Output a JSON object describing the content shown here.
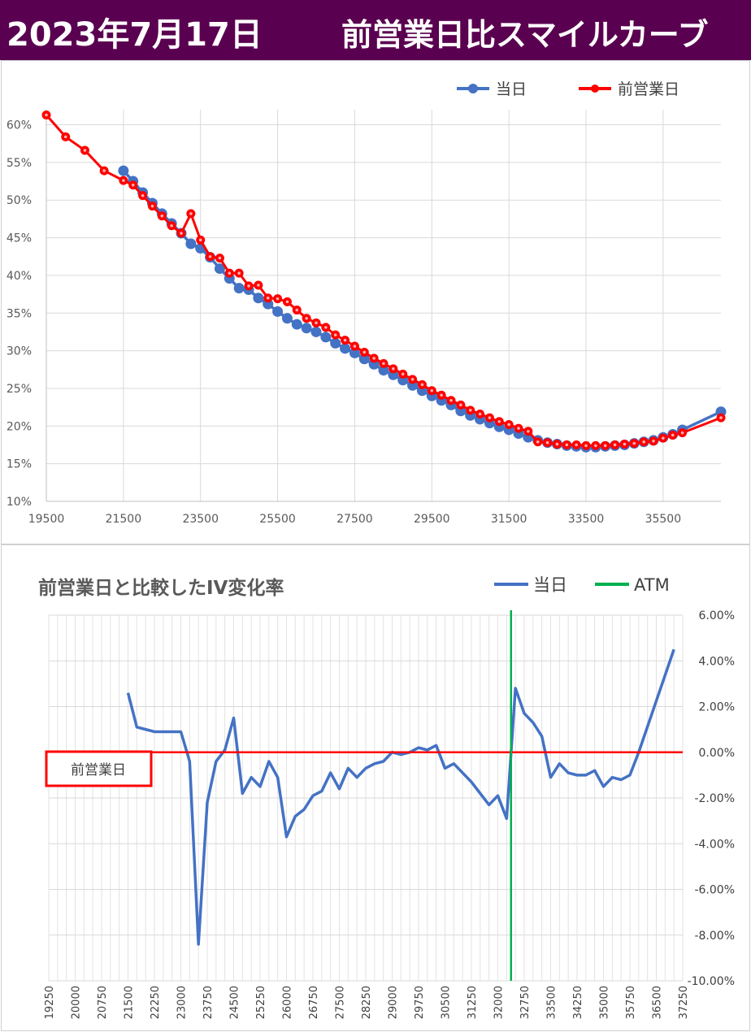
{
  "header": {
    "date": "2023年7月17日",
    "title": "前営業日比スマイルカーブ"
  },
  "colors": {
    "header_bg": "#5a0050",
    "today": "#4472c4",
    "previous": "#ff0000",
    "atm": "#00b050",
    "grid": "#d9d9d9"
  },
  "chart_data": [
    {
      "type": "line",
      "title": "",
      "legend": [
        "当日",
        "前営業日"
      ],
      "legend_position": "top-right",
      "xlim": [
        19500,
        37000
      ],
      "ylim": [
        0.1,
        0.62
      ],
      "x_ticks": [
        19500,
        21500,
        23500,
        25500,
        27500,
        29500,
        31500,
        33500,
        35500
      ],
      "y_ticks": [
        "10%",
        "15%",
        "20%",
        "25%",
        "30%",
        "35%",
        "40%",
        "45%",
        "50%",
        "55%",
        "60%"
      ],
      "grid": true,
      "series": [
        {
          "name": "当日",
          "color": "#4472c4",
          "x": [
            21500,
            21750,
            22000,
            22250,
            22500,
            22750,
            23000,
            23250,
            23500,
            23750,
            24000,
            24250,
            24500,
            24750,
            25000,
            25250,
            25500,
            25750,
            26000,
            26250,
            26500,
            26750,
            27000,
            27250,
            27500,
            27750,
            28000,
            28250,
            28500,
            28750,
            29000,
            29250,
            29500,
            29750,
            30000,
            30250,
            30500,
            30750,
            31000,
            31250,
            31500,
            31750,
            32000,
            32250,
            32500,
            32750,
            33000,
            33250,
            33500,
            33750,
            34000,
            34250,
            34500,
            34750,
            35000,
            35250,
            35500,
            35750,
            36000,
            37000
          ],
          "y": [
            0.539,
            0.525,
            0.51,
            0.496,
            0.482,
            0.469,
            0.456,
            0.442,
            0.436,
            0.424,
            0.409,
            0.396,
            0.383,
            0.381,
            0.37,
            0.362,
            0.352,
            0.343,
            0.335,
            0.33,
            0.325,
            0.318,
            0.31,
            0.303,
            0.297,
            0.289,
            0.282,
            0.274,
            0.268,
            0.261,
            0.254,
            0.247,
            0.24,
            0.234,
            0.228,
            0.22,
            0.214,
            0.209,
            0.204,
            0.199,
            0.195,
            0.19,
            0.185,
            0.181,
            0.178,
            0.176,
            0.174,
            0.173,
            0.172,
            0.172,
            0.173,
            0.174,
            0.175,
            0.177,
            0.179,
            0.181,
            0.185,
            0.189,
            0.195,
            0.219
          ]
        },
        {
          "name": "前営業日",
          "color": "#ff0000",
          "x": [
            19500,
            20000,
            20500,
            21000,
            21500,
            21750,
            22000,
            22250,
            22500,
            22750,
            23000,
            23250,
            23500,
            23750,
            24000,
            24250,
            24500,
            24750,
            25000,
            25250,
            25500,
            25750,
            26000,
            26250,
            26500,
            26750,
            27000,
            27250,
            27500,
            27750,
            28000,
            28250,
            28500,
            28750,
            29000,
            29250,
            29500,
            29750,
            30000,
            30250,
            30500,
            30750,
            31000,
            31250,
            31500,
            31750,
            32000,
            32250,
            32500,
            32750,
            33000,
            33250,
            33500,
            33750,
            34000,
            34250,
            34500,
            34750,
            35000,
            35250,
            35500,
            35750,
            36000,
            37000
          ],
          "y": [
            0.613,
            0.584,
            0.566,
            0.539,
            0.526,
            0.52,
            0.506,
            0.492,
            0.479,
            0.466,
            0.456,
            0.482,
            0.447,
            0.425,
            0.423,
            0.403,
            0.403,
            0.386,
            0.387,
            0.37,
            0.369,
            0.365,
            0.354,
            0.343,
            0.337,
            0.331,
            0.321,
            0.314,
            0.306,
            0.298,
            0.29,
            0.283,
            0.276,
            0.269,
            0.262,
            0.255,
            0.247,
            0.241,
            0.234,
            0.228,
            0.221,
            0.216,
            0.211,
            0.206,
            0.202,
            0.197,
            0.193,
            0.179,
            0.178,
            0.176,
            0.175,
            0.175,
            0.174,
            0.174,
            0.174,
            0.175,
            0.176,
            0.177,
            0.179,
            0.18,
            0.184,
            0.188,
            0.191,
            0.211
          ]
        }
      ]
    },
    {
      "type": "line",
      "title": "前営業日と比較したIV変化率",
      "legend": [
        "当日",
        "ATM"
      ],
      "legend_position": "top-right",
      "xlim": [
        19250,
        37250
      ],
      "ylim": [
        -0.1,
        0.06
      ],
      "x_ticks": [
        "19250",
        "20000",
        "20750",
        "21500",
        "22250",
        "23000",
        "23750",
        "24500",
        "25250",
        "26000",
        "26750",
        "27500",
        "28250",
        "29000",
        "29750",
        "30500",
        "31250",
        "32000",
        "32750",
        "33500",
        "34250",
        "35000",
        "35750",
        "36500",
        "37250"
      ],
      "y_ticks": [
        "6.00%",
        "4.00%",
        "2.00%",
        "0.00%",
        "-2.00%",
        "-4.00%",
        "-6.00%",
        "-8.00%",
        "-10.00%"
      ],
      "y_axis_side": "right",
      "baseline_label": "前営業日",
      "atm_x": 32375,
      "series": [
        {
          "name": "当日",
          "color": "#4472c4",
          "x": [
            21500,
            21750,
            22000,
            22250,
            22500,
            22750,
            23000,
            23250,
            23500,
            23750,
            24000,
            24250,
            24500,
            24750,
            25000,
            25250,
            25500,
            25750,
            26000,
            26250,
            26500,
            26750,
            27000,
            27250,
            27500,
            27750,
            28000,
            28250,
            28500,
            28750,
            29000,
            29250,
            29500,
            29750,
            30000,
            30250,
            30500,
            30750,
            31000,
            31250,
            31500,
            31750,
            32000,
            32250,
            32500,
            32750,
            33000,
            33250,
            33500,
            33750,
            34000,
            34250,
            34500,
            34750,
            35000,
            35250,
            35500,
            35750,
            36000,
            37000
          ],
          "y": [
            0.026,
            0.011,
            0.01,
            0.009,
            0.009,
            0.009,
            0.009,
            -0.004,
            -0.084,
            -0.022,
            -0.004,
            0.001,
            0.015,
            -0.018,
            -0.011,
            -0.015,
            -0.004,
            -0.011,
            -0.037,
            -0.028,
            -0.025,
            -0.019,
            -0.017,
            -0.009,
            -0.016,
            -0.007,
            -0.011,
            -0.007,
            -0.005,
            -0.004,
            0.0,
            -0.001,
            0.0,
            0.002,
            0.001,
            0.003,
            -0.007,
            -0.005,
            -0.009,
            -0.013,
            -0.018,
            -0.023,
            -0.019,
            -0.029,
            0.028,
            0.017,
            0.013,
            0.007,
            -0.011,
            -0.005,
            -0.009,
            -0.01,
            -0.01,
            -0.008,
            -0.015,
            -0.011,
            -0.012,
            -0.01,
            0.0,
            0.045
          ]
        }
      ]
    }
  ]
}
